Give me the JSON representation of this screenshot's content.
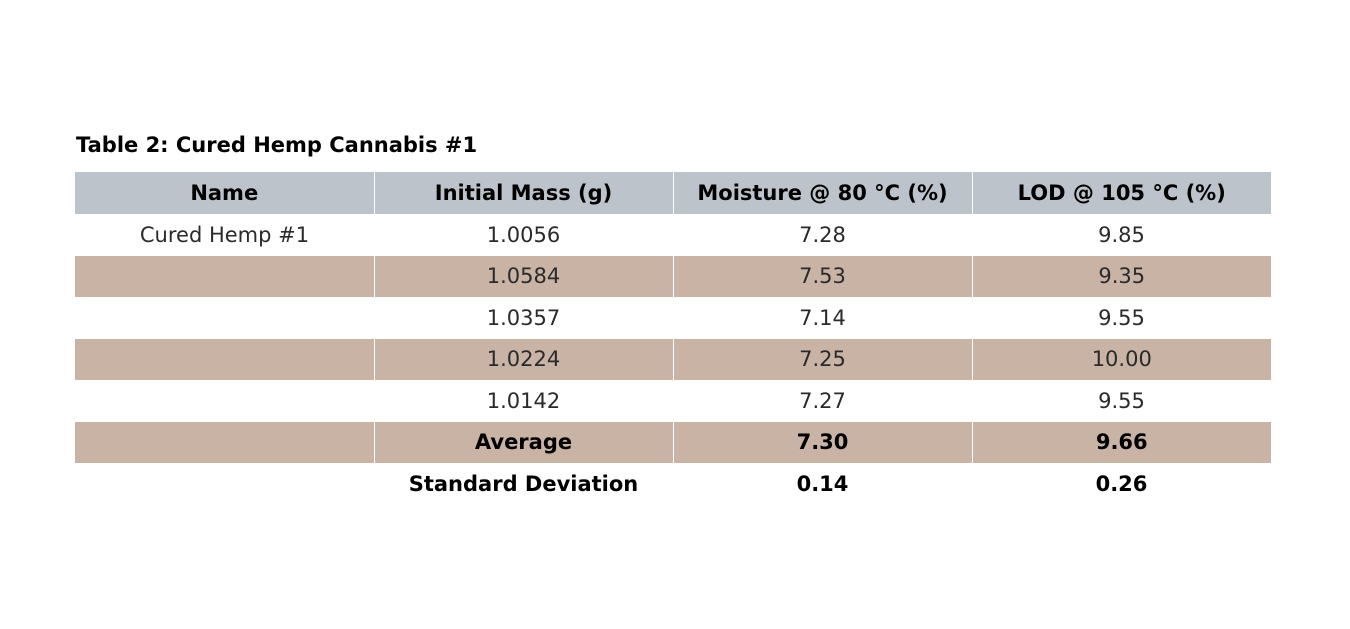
{
  "caption": "Table 2: Cured Hemp Cannabis #1",
  "headers": [
    "Name",
    "Initial Mass (g)",
    "Moisture @ 80 °C (%)",
    "LOD @ 105 °C (%)"
  ],
  "rows": [
    [
      "Cured Hemp #1",
      "1.0056",
      "7.28",
      "9.85"
    ],
    [
      "",
      "1.0584",
      "7.53",
      "9.35"
    ],
    [
      "",
      "1.0357",
      "7.14",
      "9.55"
    ],
    [
      "",
      "1.0224",
      "7.25",
      "10.00"
    ],
    [
      "",
      "1.0142",
      "7.27",
      "9.55"
    ]
  ],
  "summary": [
    [
      "",
      "Average",
      "7.30",
      "9.66"
    ],
    [
      "",
      "Standard Deviation",
      "0.14",
      "0.26"
    ]
  ],
  "colors": {
    "header_fill": "#bcc3ca",
    "band_fill": "#c8b3a5",
    "plain_fill": "#ffffff"
  }
}
